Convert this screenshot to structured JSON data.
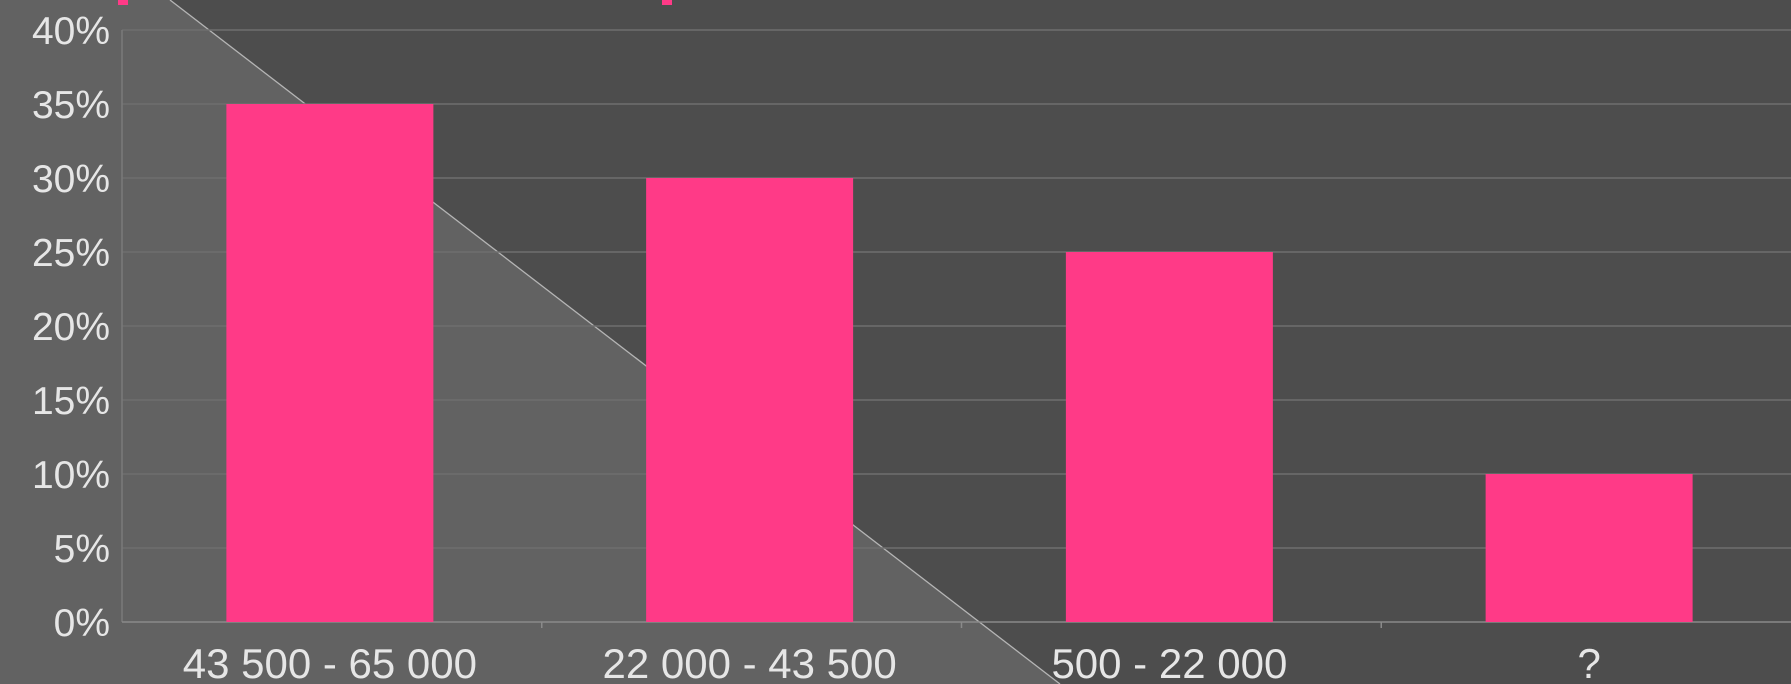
{
  "chart_data": {
    "type": "bar",
    "title": "",
    "xlabel": "",
    "ylabel": "",
    "categories": [
      "43 500 - 65 000",
      "22 000 - 43 500",
      "500 - 22 000",
      "?"
    ],
    "values": [
      35,
      30,
      25,
      10
    ],
    "ylim": [
      0,
      40
    ],
    "yticks": [
      "0%",
      "5%",
      "10%",
      "15%",
      "20%",
      "25%",
      "30%",
      "35%",
      "40%"
    ],
    "grid": true,
    "legend": "none",
    "colors": {
      "bar": "#ff3a87",
      "background_dark": "#4d4d4d",
      "background_light": "#666666",
      "gridline": "#6e6e6e",
      "axis_text": "#e6e6e6"
    }
  }
}
